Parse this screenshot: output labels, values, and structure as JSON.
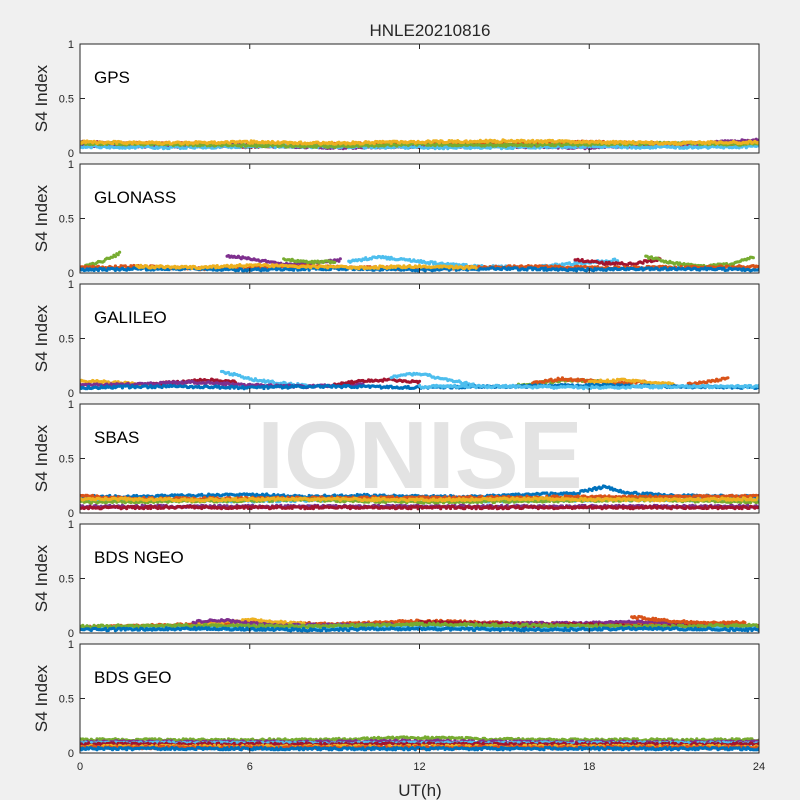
{
  "figure": {
    "title": "HNLE20210816",
    "xlabel": "UT(h)",
    "watermark": "IONISE",
    "background": "#f0f0f0",
    "axes_background": "#ffffff"
  },
  "chart_data": {
    "type": "scatter",
    "xlim": [
      0,
      24
    ],
    "xticks": [
      0,
      6,
      12,
      18,
      24
    ],
    "ylim": [
      0,
      1
    ],
    "yticks": [
      0,
      0.5,
      1
    ],
    "ylabel": "S4 Index",
    "grid": false,
    "palette": [
      "#0072bd",
      "#d95319",
      "#edb120",
      "#7e2f8e",
      "#77ac30",
      "#4dbeee",
      "#a2142f"
    ],
    "panels": [
      {
        "label": "GPS",
        "series": [
          {
            "color": "#a2142f",
            "x": [
              0,
              3,
              6,
              9,
              12,
              15,
              18,
              21,
              24
            ],
            "y": [
              0.1,
              0.07,
              0.06,
              0.07,
              0.06,
              0.07,
              0.07,
              0.08,
              0.1
            ]
          },
          {
            "color": "#d95319",
            "x": [
              0,
              3,
              6,
              9,
              12,
              15,
              18,
              21,
              24
            ],
            "y": [
              0.08,
              0.09,
              0.07,
              0.08,
              0.09,
              0.08,
              0.1,
              0.08,
              0.09
            ]
          },
          {
            "color": "#7e2f8e",
            "x": [
              0,
              3,
              6,
              9,
              12,
              15,
              18,
              21,
              24
            ],
            "y": [
              0.07,
              0.06,
              0.07,
              0.05,
              0.06,
              0.06,
              0.05,
              0.08,
              0.12
            ]
          },
          {
            "color": "#4dbeee",
            "x": [
              0,
              3,
              6,
              9,
              12,
              15,
              18,
              21,
              24
            ],
            "y": [
              0.06,
              0.05,
              0.06,
              0.06,
              0.05,
              0.05,
              0.06,
              0.05,
              0.06
            ]
          },
          {
            "color": "#77ac30",
            "x": [
              0,
              3,
              6,
              9,
              12,
              15,
              18,
              21,
              24
            ],
            "y": [
              0.09,
              0.08,
              0.07,
              0.06,
              0.08,
              0.07,
              0.08,
              0.09,
              0.08
            ]
          },
          {
            "color": "#edb120",
            "x": [
              0,
              3,
              6,
              9,
              12,
              15,
              18,
              21,
              24
            ],
            "y": [
              0.1,
              0.09,
              0.1,
              0.09,
              0.1,
              0.11,
              0.1,
              0.09,
              0.1
            ]
          }
        ]
      },
      {
        "label": "GLONASS",
        "series": [
          {
            "color": "#77ac30",
            "x": [
              0.2,
              0.6,
              1.0,
              1.4
            ],
            "y": [
              0.06,
              0.09,
              0.13,
              0.18
            ]
          },
          {
            "color": "#7e2f8e",
            "x": [
              5.2,
              6.2,
              7.2,
              8.2,
              9.2
            ],
            "y": [
              0.16,
              0.12,
              0.08,
              0.09,
              0.12
            ]
          },
          {
            "color": "#77ac30",
            "x": [
              7.2,
              8.2,
              9.0
            ],
            "y": [
              0.12,
              0.1,
              0.1
            ]
          },
          {
            "color": "#4dbeee",
            "x": [
              9.5,
              10.5,
              11.5,
              12.5,
              13.5,
              14.5,
              15.5
            ],
            "y": [
              0.1,
              0.15,
              0.12,
              0.09,
              0.07,
              0.06,
              0.05
            ]
          },
          {
            "color": "#4dbeee",
            "x": [
              16,
              17,
              18,
              19
            ],
            "y": [
              0.05,
              0.08,
              0.1,
              0.12
            ]
          },
          {
            "color": "#a2142f",
            "x": [
              17.5,
              18.5,
              19.5,
              20.5
            ],
            "y": [
              0.12,
              0.09,
              0.08,
              0.13
            ]
          },
          {
            "color": "#77ac30",
            "x": [
              20,
              21,
              22,
              23,
              23.8
            ],
            "y": [
              0.15,
              0.09,
              0.06,
              0.08,
              0.15
            ]
          },
          {
            "color": "#d95319",
            "x": [
              0,
              2,
              4,
              6,
              8,
              10,
              12,
              14,
              16,
              18,
              20,
              22,
              24
            ],
            "y": [
              0.05,
              0.06,
              0.04,
              0.05,
              0.06,
              0.05,
              0.04,
              0.05,
              0.06,
              0.05,
              0.05,
              0.05,
              0.06
            ]
          },
          {
            "color": "#0072bd",
            "x": [
              0,
              3,
              6,
              9,
              12,
              15,
              18,
              21,
              24
            ],
            "y": [
              0.03,
              0.04,
              0.03,
              0.04,
              0.03,
              0.04,
              0.03,
              0.04,
              0.03
            ]
          },
          {
            "color": "#edb120",
            "x": [
              2,
              4,
              6,
              8,
              10,
              12,
              14
            ],
            "y": [
              0.06,
              0.05,
              0.07,
              0.06,
              0.05,
              0.06,
              0.05
            ]
          }
        ]
      },
      {
        "label": "GALILEO",
        "series": [
          {
            "color": "#edb120",
            "x": [
              0,
              1,
              2,
              3
            ],
            "y": [
              0.11,
              0.1,
              0.08,
              0.07
            ]
          },
          {
            "color": "#a2142f",
            "x": [
              2.5,
              3.5,
              4.5,
              5.5
            ],
            "y": [
              0.08,
              0.1,
              0.12,
              0.1
            ]
          },
          {
            "color": "#4dbeee",
            "x": [
              5,
              6,
              7,
              8
            ],
            "y": [
              0.2,
              0.13,
              0.09,
              0.07
            ]
          },
          {
            "color": "#7e2f8e",
            "x": [
              0,
              2,
              4,
              6,
              8,
              10
            ],
            "y": [
              0.07,
              0.08,
              0.1,
              0.07,
              0.06,
              0.08
            ]
          },
          {
            "color": "#a2142f",
            "x": [
              9,
              10,
              11,
              12
            ],
            "y": [
              0.08,
              0.11,
              0.12,
              0.1
            ]
          },
          {
            "color": "#4dbeee",
            "x": [
              11,
              12,
              13,
              14
            ],
            "y": [
              0.15,
              0.18,
              0.12,
              0.07
            ]
          },
          {
            "color": "#77ac30",
            "x": [
              15.5,
              16.5,
              17.5,
              18.5,
              19.5
            ],
            "y": [
              0.07,
              0.1,
              0.12,
              0.1,
              0.08
            ]
          },
          {
            "color": "#d95319",
            "x": [
              16,
              17,
              18,
              19,
              20
            ],
            "y": [
              0.09,
              0.13,
              0.11,
              0.09,
              0.1
            ]
          },
          {
            "color": "#edb120",
            "x": [
              18,
              19,
              20,
              21
            ],
            "y": [
              0.1,
              0.12,
              0.1,
              0.08
            ]
          },
          {
            "color": "#d95319",
            "x": [
              21.5,
              22.2,
              22.9
            ],
            "y": [
              0.08,
              0.1,
              0.14
            ]
          },
          {
            "color": "#0072bd",
            "x": [
              0,
              3,
              6,
              9,
              12,
              15,
              18,
              21,
              24
            ],
            "y": [
              0.05,
              0.06,
              0.05,
              0.06,
              0.05,
              0.06,
              0.07,
              0.06,
              0.05
            ]
          },
          {
            "color": "#4dbeee",
            "x": [
              12,
              15,
              18,
              21,
              24
            ],
            "y": [
              0.06,
              0.06,
              0.05,
              0.06,
              0.06
            ]
          }
        ]
      },
      {
        "label": "SBAS",
        "series": [
          {
            "color": "#0072bd",
            "x": [
              0,
              2,
              4,
              6,
              8,
              10,
              12,
              14,
              16,
              17.5,
              18.5,
              19.5,
              21,
              24
            ],
            "y": [
              0.15,
              0.15,
              0.16,
              0.17,
              0.15,
              0.16,
              0.15,
              0.15,
              0.17,
              0.18,
              0.24,
              0.18,
              0.16,
              0.15
            ]
          },
          {
            "color": "#4dbeee",
            "x": [
              0,
              3,
              6,
              9,
              12,
              15,
              18,
              21,
              24
            ],
            "y": [
              0.12,
              0.12,
              0.11,
              0.12,
              0.12,
              0.11,
              0.12,
              0.12,
              0.12
            ]
          },
          {
            "color": "#d95319",
            "x": [
              0,
              1,
              2,
              22,
              23,
              24
            ],
            "y": [
              0.16,
              0.14,
              0.13,
              0.15,
              0.15,
              0.16
            ]
          },
          {
            "color": "#77ac30",
            "x": [
              0,
              4,
              8,
              12,
              16,
              20,
              24
            ],
            "y": [
              0.1,
              0.11,
              0.12,
              0.1,
              0.11,
              0.12,
              0.1
            ]
          },
          {
            "color": "#edb120",
            "x": [
              0,
              4,
              8,
              12,
              16,
              20,
              24
            ],
            "y": [
              0.13,
              0.12,
              0.13,
              0.12,
              0.13,
              0.12,
              0.13
            ]
          },
          {
            "color": "#7e2f8e",
            "x": [
              0,
              4,
              8,
              12,
              16,
              20,
              24
            ],
            "y": [
              0.06,
              0.06,
              0.06,
              0.06,
              0.06,
              0.06,
              0.06
            ]
          },
          {
            "color": "#a2142f",
            "x": [
              0,
              4,
              8,
              12,
              16,
              20,
              24
            ],
            "y": [
              0.05,
              0.05,
              0.05,
              0.05,
              0.05,
              0.05,
              0.05
            ]
          }
        ]
      },
      {
        "label": "BDS NGEO",
        "series": [
          {
            "color": "#d95319",
            "x": [
              0,
              3,
              6,
              9,
              12,
              15,
              18,
              21,
              24
            ],
            "y": [
              0.05,
              0.07,
              0.1,
              0.08,
              0.11,
              0.09,
              0.08,
              0.1,
              0.06
            ]
          },
          {
            "color": "#edb120",
            "x": [
              4,
              5,
              6,
              7,
              8
            ],
            "y": [
              0.07,
              0.1,
              0.12,
              0.1,
              0.08
            ]
          },
          {
            "color": "#7e2f8e",
            "x": [
              4,
              5,
              6,
              7,
              18,
              20,
              22,
              24
            ],
            "y": [
              0.1,
              0.12,
              0.09,
              0.07,
              0.09,
              0.1,
              0.08,
              0.05
            ]
          },
          {
            "color": "#4dbeee",
            "x": [
              0,
              3,
              6,
              9,
              12,
              15,
              18,
              21,
              24
            ],
            "y": [
              0.05,
              0.05,
              0.04,
              0.06,
              0.05,
              0.04,
              0.05,
              0.06,
              0.04
            ]
          },
          {
            "color": "#a2142f",
            "x": [
              12,
              14,
              16,
              18,
              20,
              22
            ],
            "y": [
              0.1,
              0.09,
              0.07,
              0.08,
              0.06,
              0.07
            ]
          },
          {
            "color": "#d95319",
            "x": [
              19.5,
              20.5,
              21.5,
              22.5,
              23.5
            ],
            "y": [
              0.15,
              0.12,
              0.1,
              0.09,
              0.1
            ]
          },
          {
            "color": "#77ac30",
            "x": [
              0,
              4,
              8,
              12,
              16,
              20,
              24
            ],
            "y": [
              0.06,
              0.07,
              0.06,
              0.08,
              0.07,
              0.06,
              0.07
            ]
          },
          {
            "color": "#0072bd",
            "x": [
              0,
              4,
              8,
              12,
              16,
              20,
              24
            ],
            "y": [
              0.03,
              0.04,
              0.03,
              0.04,
              0.03,
              0.04,
              0.03
            ]
          }
        ]
      },
      {
        "label": "BDS GEO",
        "series": [
          {
            "color": "#77ac30",
            "x": [
              0,
              4,
              8,
              12,
              16,
              20,
              24
            ],
            "y": [
              0.12,
              0.12,
              0.12,
              0.14,
              0.12,
              0.12,
              0.12
            ]
          },
          {
            "color": "#7e2f8e",
            "x": [
              0,
              4,
              8,
              12,
              16,
              20,
              24
            ],
            "y": [
              0.1,
              0.1,
              0.1,
              0.11,
              0.1,
              0.1,
              0.1
            ]
          },
          {
            "color": "#4dbeee",
            "x": [
              0,
              4,
              8,
              12,
              16,
              20,
              24
            ],
            "y": [
              0.09,
              0.09,
              0.09,
              0.09,
              0.09,
              0.09,
              0.09
            ]
          },
          {
            "color": "#a2142f",
            "x": [
              0,
              4,
              8,
              12,
              16,
              20,
              24
            ],
            "y": [
              0.08,
              0.08,
              0.08,
              0.08,
              0.08,
              0.08,
              0.08
            ]
          },
          {
            "color": "#edb120",
            "x": [
              0,
              4,
              8,
              12,
              16,
              20,
              24
            ],
            "y": [
              0.06,
              0.06,
              0.06,
              0.06,
              0.06,
              0.06,
              0.06
            ]
          },
          {
            "color": "#d95319",
            "x": [
              0,
              4,
              8,
              12,
              16,
              20,
              24
            ],
            "y": [
              0.05,
              0.05,
              0.05,
              0.05,
              0.05,
              0.05,
              0.05
            ]
          },
          {
            "color": "#0072bd",
            "x": [
              0,
              4,
              8,
              12,
              16,
              20,
              24
            ],
            "y": [
              0.04,
              0.04,
              0.04,
              0.04,
              0.04,
              0.04,
              0.04
            ]
          }
        ]
      }
    ]
  }
}
